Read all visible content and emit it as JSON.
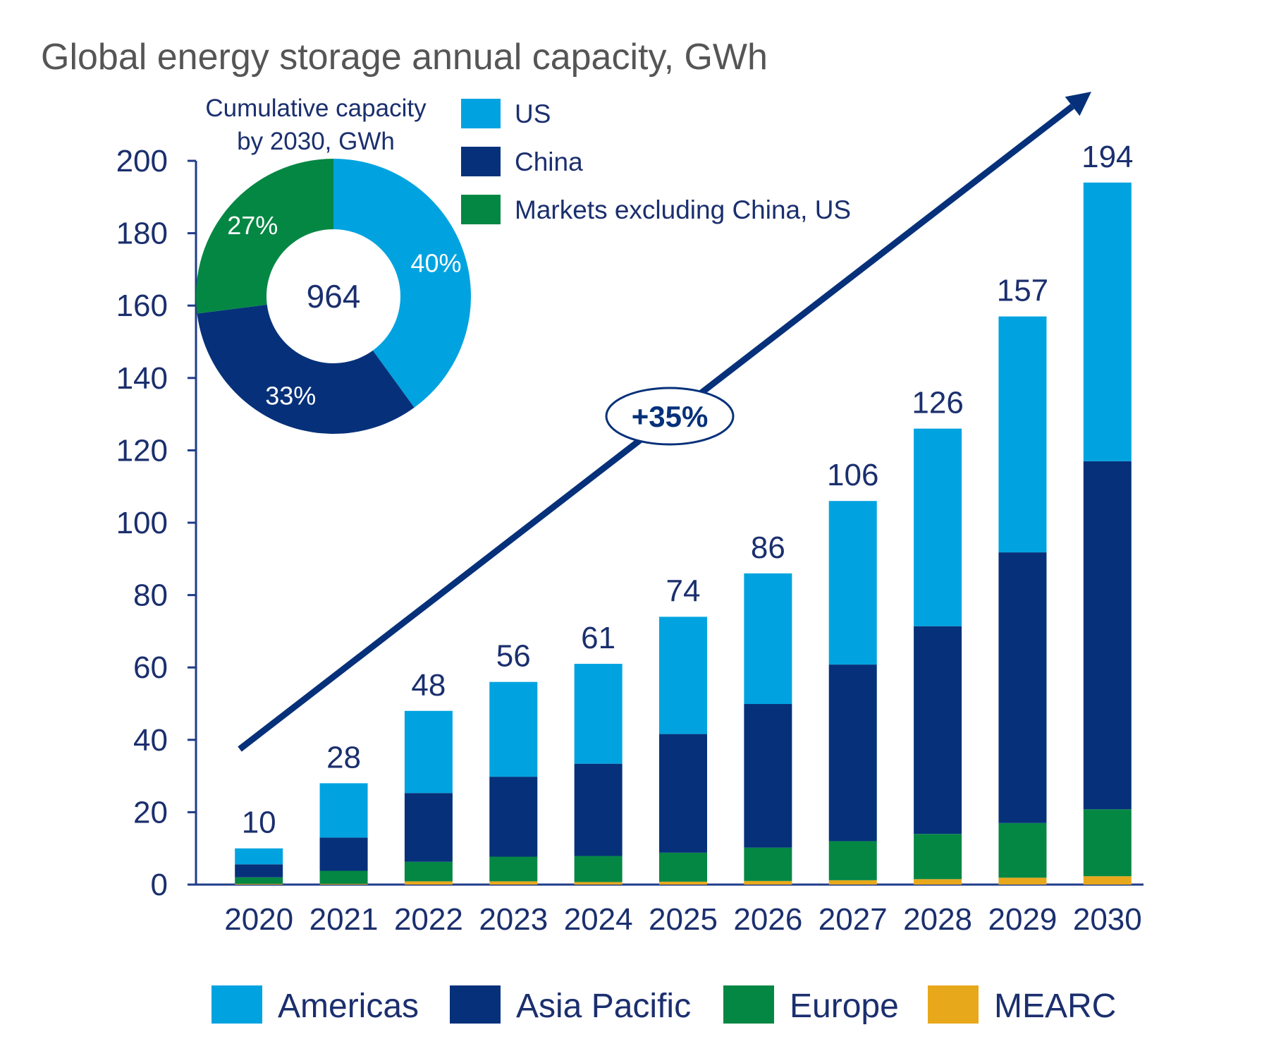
{
  "chart_data": {
    "type": "bar",
    "stacked": true,
    "title": "Global energy storage annual capacity, GWh",
    "xlabel": "",
    "ylabel": "",
    "ylim": [
      0,
      200
    ],
    "yticks": [
      0,
      20,
      40,
      60,
      80,
      100,
      120,
      140,
      160,
      180,
      200
    ],
    "grid": false,
    "categories": [
      "2020",
      "2021",
      "2022",
      "2023",
      "2024",
      "2025",
      "2026",
      "2027",
      "2028",
      "2029",
      "2030"
    ],
    "totals": [
      10,
      28,
      48,
      56,
      61,
      74,
      86,
      106,
      126,
      157,
      194
    ],
    "series": [
      {
        "name": "MEARC",
        "color": "#E8A81C",
        "values": [
          0.2,
          0.2,
          0.9,
          0.9,
          0.7,
          0.8,
          1.0,
          1.2,
          1.5,
          1.9,
          2.3
        ]
      },
      {
        "name": "Europe",
        "color": "#058744",
        "values": [
          1.8,
          3.6,
          5.4,
          6.8,
          7.2,
          8.0,
          9.2,
          10.8,
          12.5,
          15.1,
          18.5
        ]
      },
      {
        "name": "Asia Pacific",
        "color": "#06317A",
        "values": [
          3.6,
          9.2,
          19.0,
          22.1,
          25.5,
          32.8,
          39.7,
          48.8,
          57.4,
          74.8,
          96.2
        ]
      },
      {
        "name": "Americas",
        "color": "#00A3E0",
        "values": [
          4.4,
          15.0,
          22.7,
          26.2,
          27.6,
          32.4,
          36.1,
          45.2,
          54.6,
          65.2,
          77.0
        ]
      }
    ],
    "legend": {
      "placement": "bottom",
      "entries": [
        "Americas",
        "Asia Pacific",
        "Europe",
        "MEARC"
      ]
    },
    "trend_annotation": {
      "label": "+35%",
      "description": "CAGR arrow from 2020 to 2030"
    },
    "inset": {
      "type": "pie",
      "title_line1": "Cumulative capacity",
      "title_line2": "by 2030, GWh",
      "center_label": "964",
      "slices": [
        {
          "name": "US",
          "percent": 40,
          "label": "40%",
          "color": "#00A3E0"
        },
        {
          "name": "China",
          "percent": 33,
          "label": "33%",
          "color": "#06317A"
        },
        {
          "name": "Markets excluding China, US",
          "percent": 27,
          "label": "27%",
          "color": "#058744"
        }
      ],
      "legend_entries": [
        "US",
        "China",
        "Markets excluding China, US"
      ]
    }
  },
  "colors": {
    "axis": "#1F3C88",
    "text_dark": "#1B2F6E",
    "title": "#555555",
    "arrow": "#06317A"
  }
}
